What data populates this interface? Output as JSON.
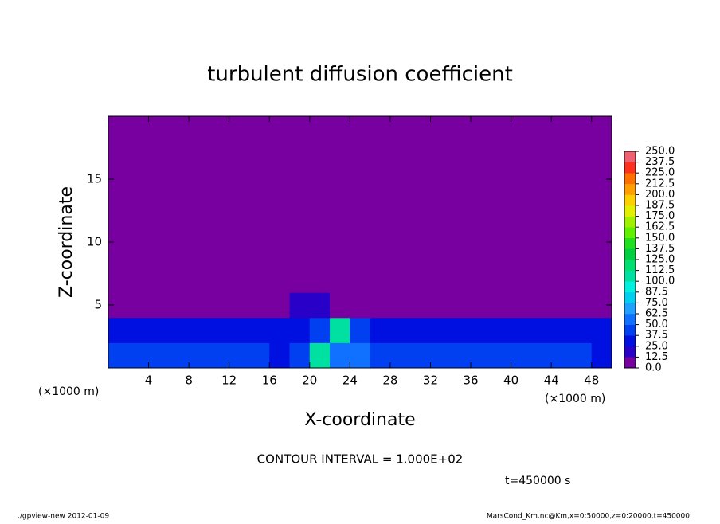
{
  "chart_data": {
    "type": "heatmap",
    "title": "turbulent diffusion coefficient",
    "x_label": "X-coordinate",
    "y_label": "Z-coordinate",
    "x_unit": "(×1000 m)",
    "y_unit": "(×1000 m)",
    "xlim": [
      0,
      50
    ],
    "ylim": [
      0,
      20
    ],
    "xticks": [
      4,
      8,
      12,
      16,
      20,
      24,
      28,
      32,
      36,
      40,
      44,
      48
    ],
    "yticks": [
      5,
      10,
      15
    ],
    "x_edges": [
      0,
      2,
      4,
      6,
      8,
      10,
      12,
      14,
      16,
      18,
      20,
      22,
      24,
      26,
      28,
      30,
      32,
      34,
      36,
      38,
      40,
      42,
      44,
      46,
      48,
      50
    ],
    "z_edges": [
      0,
      2,
      4,
      6,
      8,
      10,
      12,
      14,
      16,
      18,
      20
    ],
    "z": [
      [
        40,
        45,
        42,
        38,
        40,
        42,
        44,
        38,
        36,
        40,
        100,
        55,
        60,
        40,
        38,
        42,
        45,
        40,
        38,
        42,
        40,
        38,
        40,
        42,
        36
      ],
      [
        30,
        28,
        32,
        30,
        26,
        30,
        28,
        25,
        30,
        32,
        38,
        100,
        45,
        30,
        28,
        26,
        30,
        32,
        30,
        28,
        30,
        32,
        28,
        30,
        30
      ],
      [
        0,
        0,
        0,
        0,
        0,
        0,
        0,
        0,
        0,
        15,
        20,
        12,
        0,
        0,
        0,
        0,
        0,
        0,
        0,
        0,
        0,
        0,
        0,
        0,
        0
      ],
      [
        0,
        0,
        0,
        0,
        0,
        0,
        0,
        0,
        0,
        0,
        0,
        0,
        0,
        0,
        0,
        0,
        0,
        0,
        0,
        0,
        0,
        0,
        0,
        0,
        0
      ],
      [
        0,
        0,
        0,
        0,
        0,
        0,
        0,
        0,
        0,
        0,
        0,
        0,
        0,
        0,
        0,
        0,
        0,
        0,
        0,
        0,
        0,
        0,
        0,
        0,
        0
      ],
      [
        0,
        0,
        0,
        0,
        0,
        0,
        0,
        0,
        0,
        0,
        0,
        0,
        0,
        0,
        0,
        0,
        0,
        0,
        0,
        0,
        0,
        0,
        0,
        0,
        0
      ],
      [
        0,
        0,
        0,
        0,
        0,
        0,
        0,
        0,
        0,
        0,
        0,
        0,
        0,
        0,
        0,
        0,
        0,
        0,
        0,
        0,
        0,
        0,
        0,
        0,
        0
      ],
      [
        0,
        0,
        0,
        0,
        0,
        0,
        0,
        0,
        0,
        0,
        0,
        0,
        0,
        0,
        0,
        0,
        0,
        0,
        0,
        0,
        0,
        0,
        0,
        0,
        0
      ],
      [
        0,
        0,
        0,
        0,
        0,
        0,
        0,
        0,
        0,
        0,
        0,
        0,
        0,
        0,
        0,
        0,
        0,
        0,
        0,
        0,
        0,
        0,
        0,
        0,
        0
      ],
      [
        0,
        0,
        0,
        0,
        0,
        0,
        0,
        0,
        0,
        0,
        0,
        0,
        0,
        0,
        0,
        0,
        0,
        0,
        0,
        0,
        0,
        0,
        0,
        0,
        0
      ]
    ],
    "levels": [
      {
        "value": 0,
        "label": "0.0"
      },
      {
        "value": 12.5,
        "label": "12.5"
      },
      {
        "value": 25,
        "label": "25.0"
      },
      {
        "value": 37.5,
        "label": "37.5"
      },
      {
        "value": 50,
        "label": "50.0"
      },
      {
        "value": 62.5,
        "label": "62.5"
      },
      {
        "value": 75,
        "label": "75.0"
      },
      {
        "value": 87.5,
        "label": "87.5"
      },
      {
        "value": 100,
        "label": "100.0"
      },
      {
        "value": 112.5,
        "label": "112.5"
      },
      {
        "value": 125,
        "label": "125.0"
      },
      {
        "value": 137.5,
        "label": "137.5"
      },
      {
        "value": 150,
        "label": "150.0"
      },
      {
        "value": 162.5,
        "label": "162.5"
      },
      {
        "value": 175,
        "label": "175.0"
      },
      {
        "value": 187.5,
        "label": "187.5"
      },
      {
        "value": 200,
        "label": "200.0"
      },
      {
        "value": 212.5,
        "label": "212.5"
      },
      {
        "value": 225,
        "label": "225.0"
      },
      {
        "value": 237.5,
        "label": "237.5"
      },
      {
        "value": 250,
        "label": "250.0"
      }
    ],
    "colors": [
      "#7800a0",
      "#2800c8",
      "#0010e0",
      "#0040f0",
      "#1070ff",
      "#20a0ff",
      "#00d0f0",
      "#00f0e0",
      "#00e0a0",
      "#00e070",
      "#00d040",
      "#20e020",
      "#60f000",
      "#a0f000",
      "#e0f000",
      "#ffd000",
      "#ffa000",
      "#ff7000",
      "#ff3020",
      "#f06070"
    ],
    "contour_note": "CONTOUR INTERVAL = 1.000E+02",
    "time_note": "t=450000 s",
    "footer_left": "./gpview-new  2012-01-09",
    "footer_right": "MarsCond_Km.nc@Km,x=0:50000,z=0:20000,t=450000"
  }
}
